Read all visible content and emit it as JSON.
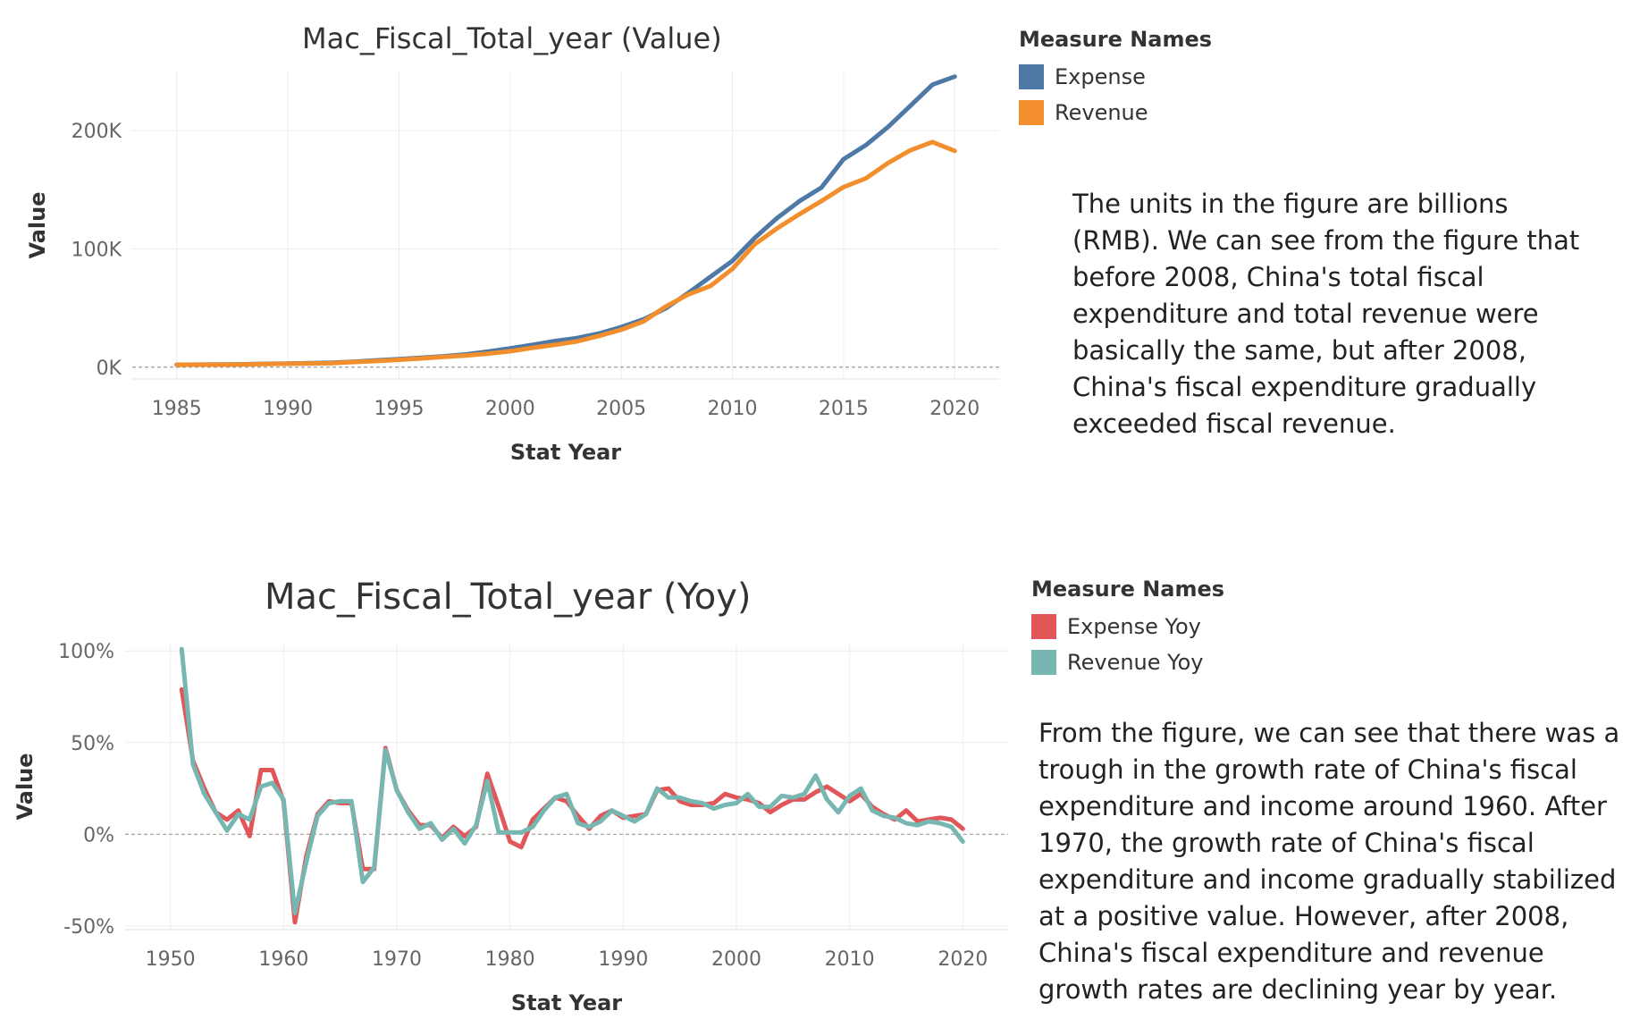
{
  "chart_data": [
    {
      "type": "line",
      "title": "Mac_Fiscal_Total_year (Value)",
      "xlabel": "Stat Year",
      "ylabel": "Value",
      "xlim": [
        1983,
        2022
      ],
      "ylim": [
        -10000,
        250000
      ],
      "xticks": [
        1985,
        1990,
        1995,
        2000,
        2005,
        2010,
        2015,
        2020
      ],
      "xtick_labels": [
        "1985",
        "1990",
        "1995",
        "2000",
        "2005",
        "2010",
        "2015",
        "2020"
      ],
      "yticks": [
        0,
        100000,
        200000
      ],
      "ytick_labels": [
        "0K",
        "100K",
        "200K"
      ],
      "grid": true,
      "legend": {
        "title": "Measure Names",
        "position": "right"
      },
      "x": [
        1985,
        1986,
        1987,
        1988,
        1989,
        1990,
        1991,
        1992,
        1993,
        1994,
        1995,
        1996,
        1997,
        1998,
        1999,
        2000,
        2001,
        2002,
        2003,
        2004,
        2005,
        2006,
        2007,
        2008,
        2009,
        2010,
        2011,
        2012,
        2013,
        2014,
        2015,
        2016,
        2017,
        2018,
        2019,
        2020
      ],
      "series": [
        {
          "name": "Expense",
          "color": "#4e79a7",
          "values": [
            2004,
            2205,
            2262,
            2491,
            2824,
            3084,
            3387,
            3742,
            4642,
            5793,
            6824,
            7938,
            9234,
            10798,
            13188,
            15887,
            18903,
            22053,
            24650,
            28487,
            33930,
            40423,
            49781,
            62593,
            76300,
            89874,
            109248,
            125953,
            140212,
            151786,
            175878,
            187755,
            203085,
            220904,
            238858,
            245679
          ]
        },
        {
          "name": "Revenue",
          "color": "#f28e2b",
          "values": [
            2005,
            2122,
            2199,
            2357,
            2665,
            2937,
            3149,
            3483,
            4349,
            5218,
            6242,
            7408,
            8651,
            9876,
            11444,
            13395,
            16386,
            18904,
            21715,
            26396,
            31649,
            38760,
            51322,
            61330,
            68518,
            83102,
            103874,
            117254,
            129210,
            140370,
            152269,
            159605,
            172593,
            183360,
            190390,
            182914
          ]
        }
      ]
    },
    {
      "type": "line",
      "title": "Mac_Fiscal_Total_year (Yoy)",
      "xlabel": "Stat Year",
      "ylabel": "Value",
      "xlim": [
        1946,
        2024
      ],
      "ylim": [
        -0.52,
        1.04
      ],
      "xticks": [
        1950,
        1960,
        1970,
        1980,
        1990,
        2000,
        2010,
        2020
      ],
      "xtick_labels": [
        "1950",
        "1960",
        "1970",
        "1980",
        "1990",
        "2000",
        "2010",
        "2020"
      ],
      "yticks": [
        -0.5,
        0,
        0.5,
        1.0
      ],
      "ytick_labels": [
        "-50%",
        "0%",
        "50%",
        "100%"
      ],
      "grid": true,
      "legend": {
        "title": "Measure Names",
        "position": "right"
      },
      "x": [
        1951,
        1952,
        1953,
        1954,
        1955,
        1956,
        1957,
        1958,
        1959,
        1960,
        1961,
        1962,
        1963,
        1964,
        1965,
        1966,
        1967,
        1968,
        1969,
        1970,
        1971,
        1972,
        1973,
        1974,
        1975,
        1976,
        1977,
        1978,
        1979,
        1980,
        1981,
        1982,
        1983,
        1984,
        1985,
        1986,
        1987,
        1988,
        1989,
        1990,
        1991,
        1992,
        1993,
        1994,
        1995,
        1996,
        1997,
        1998,
        1999,
        2000,
        2001,
        2002,
        2003,
        2004,
        2005,
        2006,
        2007,
        2008,
        2009,
        2010,
        2011,
        2012,
        2013,
        2014,
        2015,
        2016,
        2017,
        2018,
        2019,
        2020
      ],
      "series": [
        {
          "name": "Expense Yoy",
          "color": "#e15759",
          "values": [
            0.79,
            0.4,
            0.25,
            0.12,
            0.08,
            0.13,
            -0.01,
            0.35,
            0.35,
            0.18,
            -0.48,
            -0.12,
            0.11,
            0.18,
            0.17,
            0.17,
            -0.19,
            -0.19,
            0.47,
            0.24,
            0.13,
            0.05,
            0.05,
            -0.02,
            0.04,
            -0.01,
            0.04,
            0.33,
            0.15,
            -0.04,
            -0.07,
            0.08,
            0.14,
            0.2,
            0.18,
            0.1,
            0.03,
            0.1,
            0.13,
            0.09,
            0.1,
            0.11,
            0.24,
            0.25,
            0.18,
            0.16,
            0.16,
            0.17,
            0.22,
            0.2,
            0.19,
            0.17,
            0.12,
            0.16,
            0.19,
            0.19,
            0.23,
            0.26,
            0.22,
            0.18,
            0.22,
            0.15,
            0.11,
            0.08,
            0.13,
            0.07,
            0.08,
            0.09,
            0.08,
            0.03
          ]
        },
        {
          "name": "Revenue Yoy",
          "color": "#76b7b2",
          "values": [
            1.01,
            0.38,
            0.22,
            0.12,
            0.02,
            0.11,
            0.08,
            0.26,
            0.28,
            0.19,
            -0.43,
            -0.15,
            0.1,
            0.17,
            0.18,
            0.18,
            -0.26,
            -0.18,
            0.46,
            0.24,
            0.12,
            0.03,
            0.06,
            -0.03,
            0.03,
            -0.05,
            0.05,
            0.29,
            0.01,
            0.01,
            0.01,
            0.04,
            0.13,
            0.2,
            0.22,
            0.06,
            0.04,
            0.07,
            0.13,
            0.1,
            0.07,
            0.11,
            0.25,
            0.2,
            0.2,
            0.18,
            0.17,
            0.14,
            0.16,
            0.17,
            0.22,
            0.15,
            0.15,
            0.21,
            0.2,
            0.22,
            0.32,
            0.19,
            0.12,
            0.21,
            0.25,
            0.13,
            0.1,
            0.09,
            0.06,
            0.05,
            0.07,
            0.06,
            0.04,
            -0.04
          ]
        }
      ]
    }
  ],
  "notes": {
    "top": "The units in the figure are billions (RMB). We can see from the figure that before 2008, China's total fiscal expenditure and total revenue were basically the same, but after 2008, China's fiscal expenditure gradually exceeded fiscal revenue.",
    "bottom": "From the figure, we can see that there was a trough in the growth rate of China's fiscal expenditure and income around 1960. After 1970, the growth rate of China's fiscal expenditure and income gradually stabilized at a positive value. However, after 2008, China's fiscal expenditure and revenue growth rates are declining year by year."
  }
}
